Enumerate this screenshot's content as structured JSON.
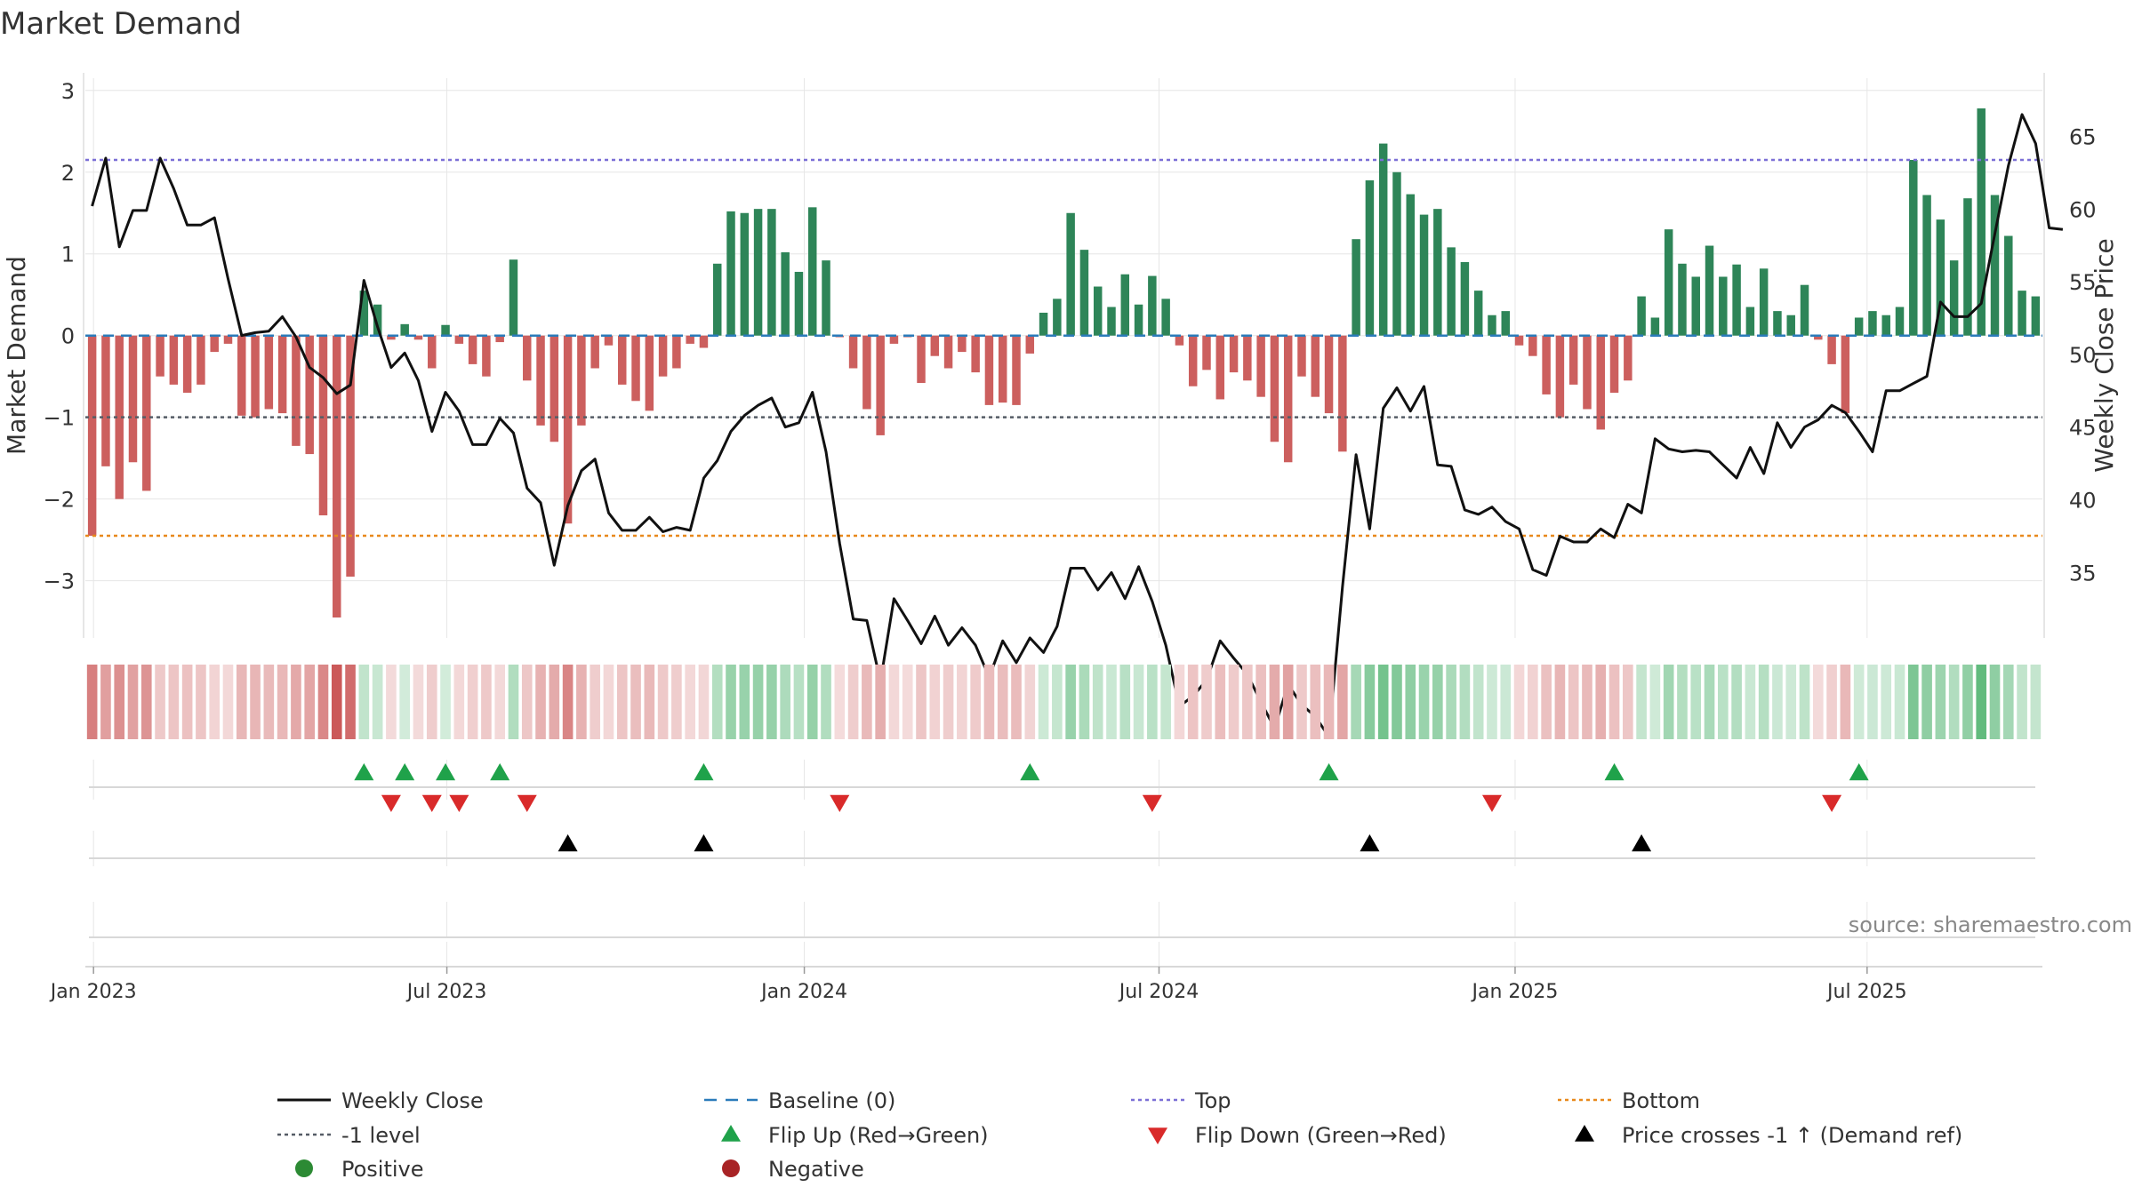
{
  "chart_data": {
    "type": "bar",
    "title": "Market Demand",
    "ylabel_left": "Market Demand",
    "ylabel_right": "Weekly Close Price",
    "ylim_left": [
      -3.7,
      3.15
    ],
    "ylim_right": [
      30.5,
      69.0
    ],
    "y_ticks_left": [
      "3",
      "2",
      "1",
      "0",
      "−1",
      "−2",
      "−3"
    ],
    "y_tick_values_left": [
      3,
      2,
      1,
      0,
      -1,
      -2,
      -3
    ],
    "y_ticks_right": [
      "65",
      "60",
      "55",
      "50",
      "45",
      "40",
      "35"
    ],
    "y_tick_values_right": [
      65,
      60,
      55,
      50,
      45,
      40,
      35
    ],
    "x_ticks": [
      "Jan 2023",
      "Jul 2023",
      "Jan 2024",
      "Jul 2024",
      "Jan 2025",
      "Jul 2025"
    ],
    "x_tick_weeks": [
      0.6,
      26.6,
      52.9,
      79.0,
      105.2,
      131.1
    ],
    "reference_lines": {
      "top": 2.15,
      "minus_one": -1.0,
      "bottom": -2.45,
      "baseline": 0
    },
    "demand": [
      -2.45,
      -1.6,
      -2.0,
      -1.55,
      -1.9,
      -0.5,
      -0.6,
      -0.7,
      -0.6,
      -0.2,
      -0.1,
      -0.98,
      -1.0,
      -0.9,
      -0.95,
      -1.35,
      -1.45,
      -2.2,
      -3.45,
      -2.95,
      0.55,
      0.38,
      -0.05,
      0.14,
      -0.05,
      -0.4,
      0.13,
      -0.1,
      -0.35,
      -0.5,
      -0.08,
      0.93,
      -0.55,
      -1.1,
      -1.3,
      -2.3,
      -1.1,
      -0.4,
      -0.12,
      -0.6,
      -0.8,
      -0.92,
      -0.5,
      -0.4,
      -0.1,
      -0.15,
      0.88,
      1.52,
      1.5,
      1.55,
      1.55,
      1.02,
      0.78,
      1.57,
      0.92,
      -0.02,
      -0.4,
      -0.9,
      -1.22,
      -0.1,
      -0.02,
      -0.58,
      -0.25,
      -0.4,
      -0.2,
      -0.45,
      -0.85,
      -0.82,
      -0.85,
      -0.22,
      0.28,
      0.45,
      1.5,
      1.05,
      0.6,
      0.35,
      0.75,
      0.38,
      0.73,
      0.45,
      -0.12,
      -0.62,
      -0.42,
      -0.78,
      -0.45,
      -0.55,
      -0.75,
      -1.3,
      -1.55,
      -0.5,
      -0.75,
      -0.95,
      -1.42,
      1.18,
      1.9,
      2.35,
      2.0,
      1.73,
      1.48,
      1.55,
      1.08,
      0.9,
      0.55,
      0.25,
      0.3,
      -0.12,
      -0.25,
      -0.72,
      -1.0,
      -0.6,
      -0.9,
      -1.15,
      -0.7,
      -0.55,
      0.48,
      0.22,
      1.3,
      0.88,
      0.72,
      1.1,
      0.72,
      0.87,
      0.35,
      0.82,
      0.3,
      0.25,
      0.62,
      -0.05,
      -0.35,
      -0.95,
      0.22,
      0.3,
      0.25,
      0.35,
      2.15,
      1.72,
      1.42,
      0.92,
      1.68,
      2.78,
      1.72,
      1.22,
      0.55,
      0.48
    ],
    "close": [
      60.2,
      63.5,
      57.4,
      59.9,
      59.9,
      63.5,
      61.4,
      58.9,
      58.9,
      59.4,
      55.2,
      51.3,
      51.5,
      51.6,
      52.6,
      51.2,
      49.1,
      48.4,
      47.3,
      47.9,
      55.1,
      51.9,
      49.1,
      50.1,
      48.2,
      44.7,
      47.4,
      46.1,
      43.8,
      43.8,
      45.6,
      44.6,
      40.8,
      39.8,
      35.5,
      39.6,
      42.0,
      42.8,
      39.1,
      37.9,
      37.9,
      38.8,
      37.8,
      38.1,
      37.9,
      41.5,
      42.7,
      44.7,
      45.8,
      46.5,
      47.0,
      45.0,
      45.3,
      47.4,
      43.3,
      37.0,
      31.8,
      31.7,
      27.5,
      33.2,
      31.7,
      30.1,
      32.0,
      30.0,
      31.2,
      30.0,
      27.8,
      30.3,
      28.8,
      30.5,
      29.5,
      31.3,
      35.3,
      35.3,
      33.8,
      35.0,
      33.2,
      35.4,
      33.0,
      30.0,
      25.8,
      26.5,
      27.6,
      30.3,
      29.1,
      28.0,
      26.1,
      24.3,
      27.3,
      25.9,
      25.1,
      23.7,
      34.0,
      43.1,
      38.0,
      46.3,
      47.7,
      46.1,
      47.8,
      42.4,
      42.3,
      39.3,
      39.0,
      39.5,
      38.5,
      38.0,
      35.2,
      34.8,
      37.5,
      37.1,
      37.1,
      38.0,
      37.4,
      39.7,
      39.1,
      44.2,
      43.5,
      43.3,
      43.4,
      43.3,
      42.4,
      41.5,
      43.6,
      41.8,
      45.3,
      43.6,
      45.0,
      45.5,
      46.5,
      46.0,
      44.7,
      43.3,
      47.5,
      47.5,
      48.0,
      48.5,
      53.6,
      52.6,
      52.6,
      53.5,
      58.3,
      63.0,
      66.5,
      64.5,
      58.7,
      58.6
    ],
    "heat_strip": "Demand heat strip (weekly)",
    "flip_up_weeks": [
      20,
      23,
      26,
      30,
      45,
      69,
      91,
      112,
      130
    ],
    "flip_down_weeks": [
      22,
      25,
      27,
      32,
      55,
      78,
      103,
      128
    ],
    "price_cross_weeks": [
      35,
      45,
      94,
      114
    ],
    "source": "source: sharemaestro.com",
    "legend": [
      {
        "key": "close",
        "label": "Weekly Close",
        "color": "#111111"
      },
      {
        "key": "baseline",
        "label": "Baseline (0)",
        "color": "#2b7bba"
      },
      {
        "key": "top",
        "label": "Top",
        "color": "#7b6fd6"
      },
      {
        "key": "bottom",
        "label": "Bottom",
        "color": "#e8891c"
      },
      {
        "key": "minus1",
        "label": "-1 level",
        "color": "#555c66"
      },
      {
        "key": "flipup",
        "label": "Flip Up (Red→Green)",
        "color": "#1fa24a"
      },
      {
        "key": "flipdown",
        "label": "Flip Down (Green→Red)",
        "color": "#d92a2a"
      },
      {
        "key": "cross",
        "label": "Price crosses -1 ↑ (Demand ref)",
        "color": "#000000"
      },
      {
        "key": "positive",
        "label": "Positive",
        "color": "#2c8a34"
      },
      {
        "key": "negative",
        "label": "Negative",
        "color": "#a82325"
      }
    ],
    "colors": {
      "pos_bar": "#2e8558",
      "neg_bar": "#cc5f5e",
      "price": "#111111",
      "grid": "#e6e6e6"
    }
  }
}
